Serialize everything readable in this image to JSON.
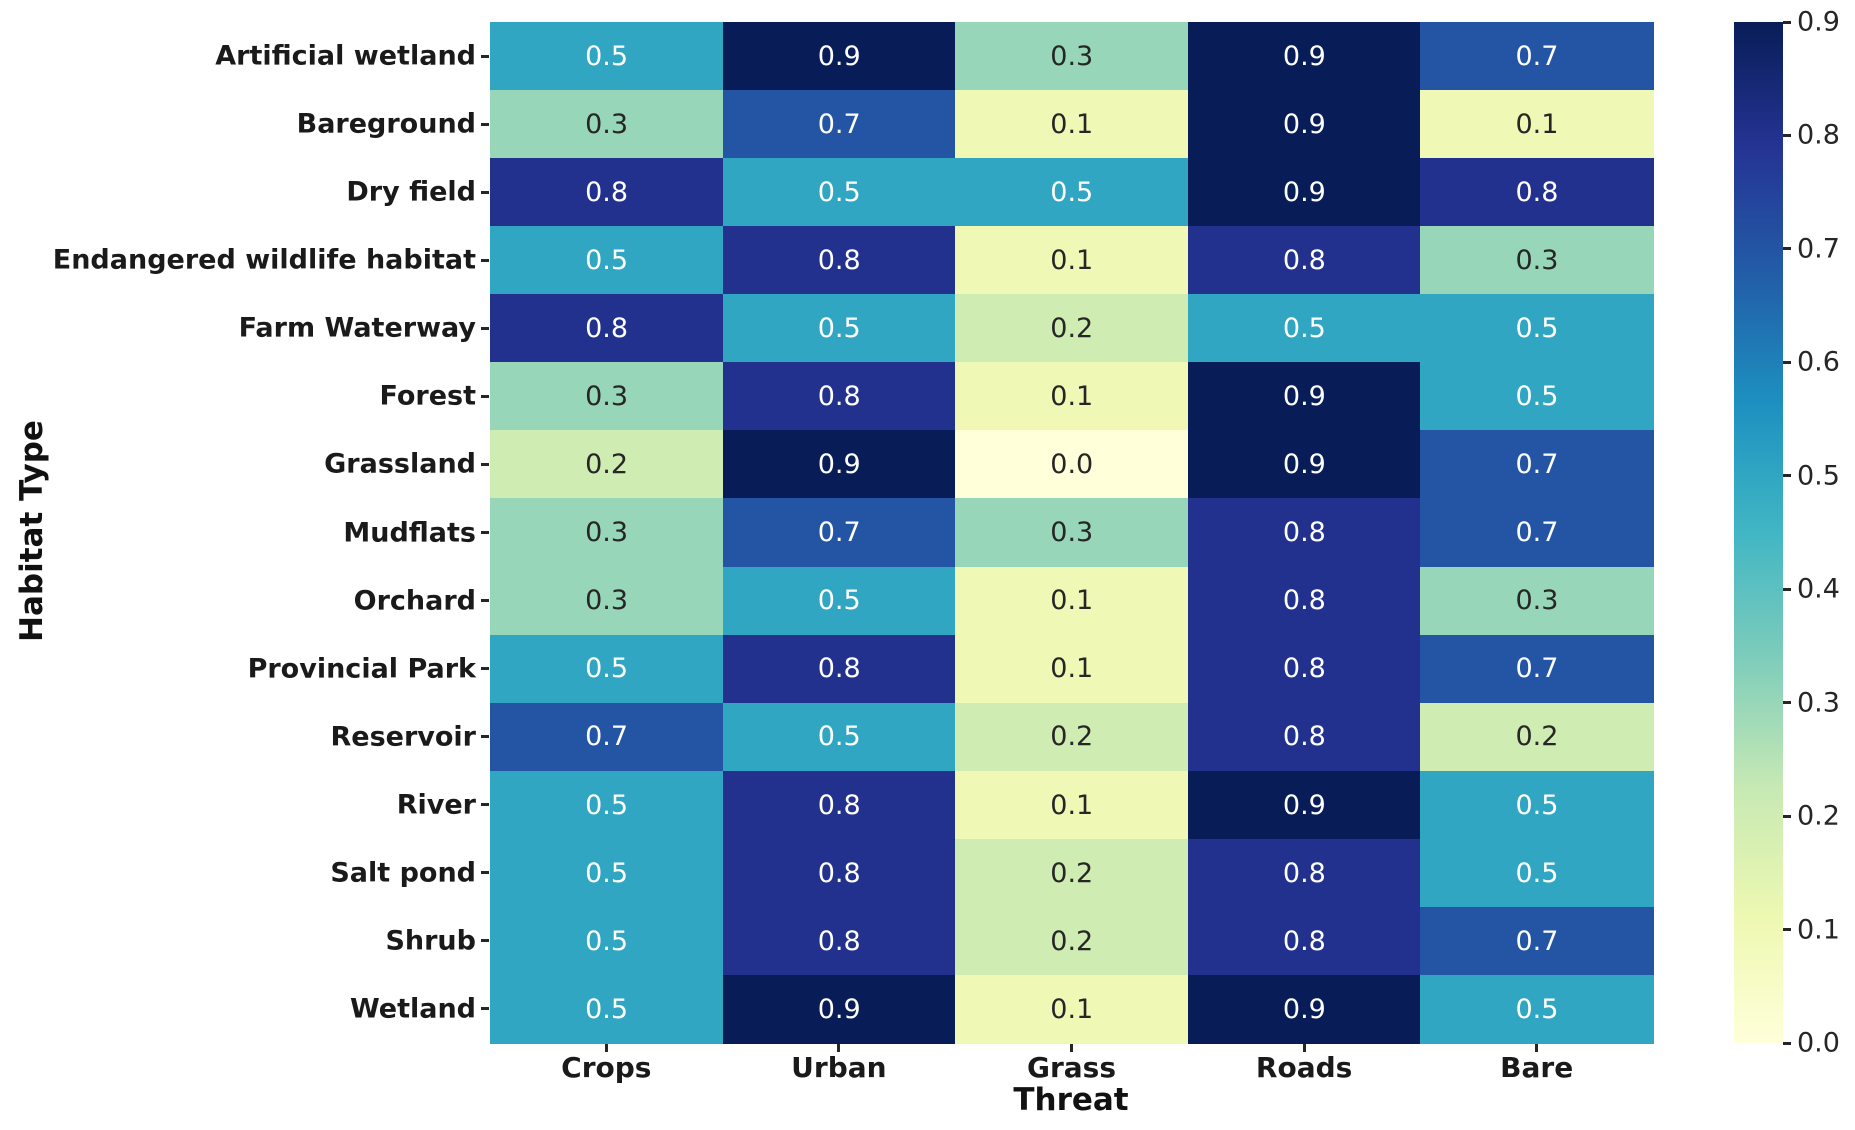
{
  "figure": {
    "background": "#ffffff",
    "text_color": "#1a1a1a"
  },
  "chart_data": {
    "type": "heatmap",
    "title": "",
    "xlabel": "Threat",
    "ylabel": "Habitat Type",
    "columns": [
      "Crops",
      "Urban",
      "Grass",
      "Roads",
      "Bare"
    ],
    "rows": [
      "Artificial wetland",
      "Bareground",
      "Dry field",
      "Endangered wildlife habitat",
      "Farm Waterway",
      "Forest",
      "Grassland",
      "Mudflats",
      "Orchard",
      "Provincial Park",
      "Reservoir",
      "River",
      "Salt pond",
      "Shrub",
      "Wetland"
    ],
    "values": [
      [
        0.5,
        0.9,
        0.3,
        0.9,
        0.7
      ],
      [
        0.3,
        0.7,
        0.1,
        0.9,
        0.1
      ],
      [
        0.8,
        0.5,
        0.5,
        0.9,
        0.8
      ],
      [
        0.5,
        0.8,
        0.1,
        0.8,
        0.3
      ],
      [
        0.8,
        0.5,
        0.2,
        0.5,
        0.5
      ],
      [
        0.3,
        0.8,
        0.1,
        0.9,
        0.5
      ],
      [
        0.2,
        0.9,
        0.0,
        0.9,
        0.7
      ],
      [
        0.3,
        0.7,
        0.3,
        0.8,
        0.7
      ],
      [
        0.3,
        0.5,
        0.1,
        0.8,
        0.3
      ],
      [
        0.5,
        0.8,
        0.1,
        0.8,
        0.7
      ],
      [
        0.7,
        0.5,
        0.2,
        0.8,
        0.2
      ],
      [
        0.5,
        0.8,
        0.1,
        0.9,
        0.5
      ],
      [
        0.5,
        0.8,
        0.2,
        0.8,
        0.5
      ],
      [
        0.5,
        0.8,
        0.2,
        0.8,
        0.7
      ],
      [
        0.5,
        0.9,
        0.1,
        0.9,
        0.5
      ]
    ],
    "value_format_decimals": 1,
    "vmin": 0.0,
    "vmax": 0.9,
    "grid": false,
    "legend": "colorbar-right",
    "colormap": {
      "name": "YlGnBu",
      "stops": [
        "#ffffd9",
        "#edf8b1",
        "#c7e9b4",
        "#7fcdbb",
        "#41b6c4",
        "#1d91c0",
        "#225ea8",
        "#253494",
        "#081d58"
      ]
    },
    "colorbar_ticks": [
      "0.9",
      "0.8",
      "0.7",
      "0.6",
      "0.5",
      "0.4",
      "0.3",
      "0.2",
      "0.1",
      "0.0"
    ],
    "annotation_text_colors": {
      "light": "#ffffff",
      "dark": "#262626"
    }
  }
}
